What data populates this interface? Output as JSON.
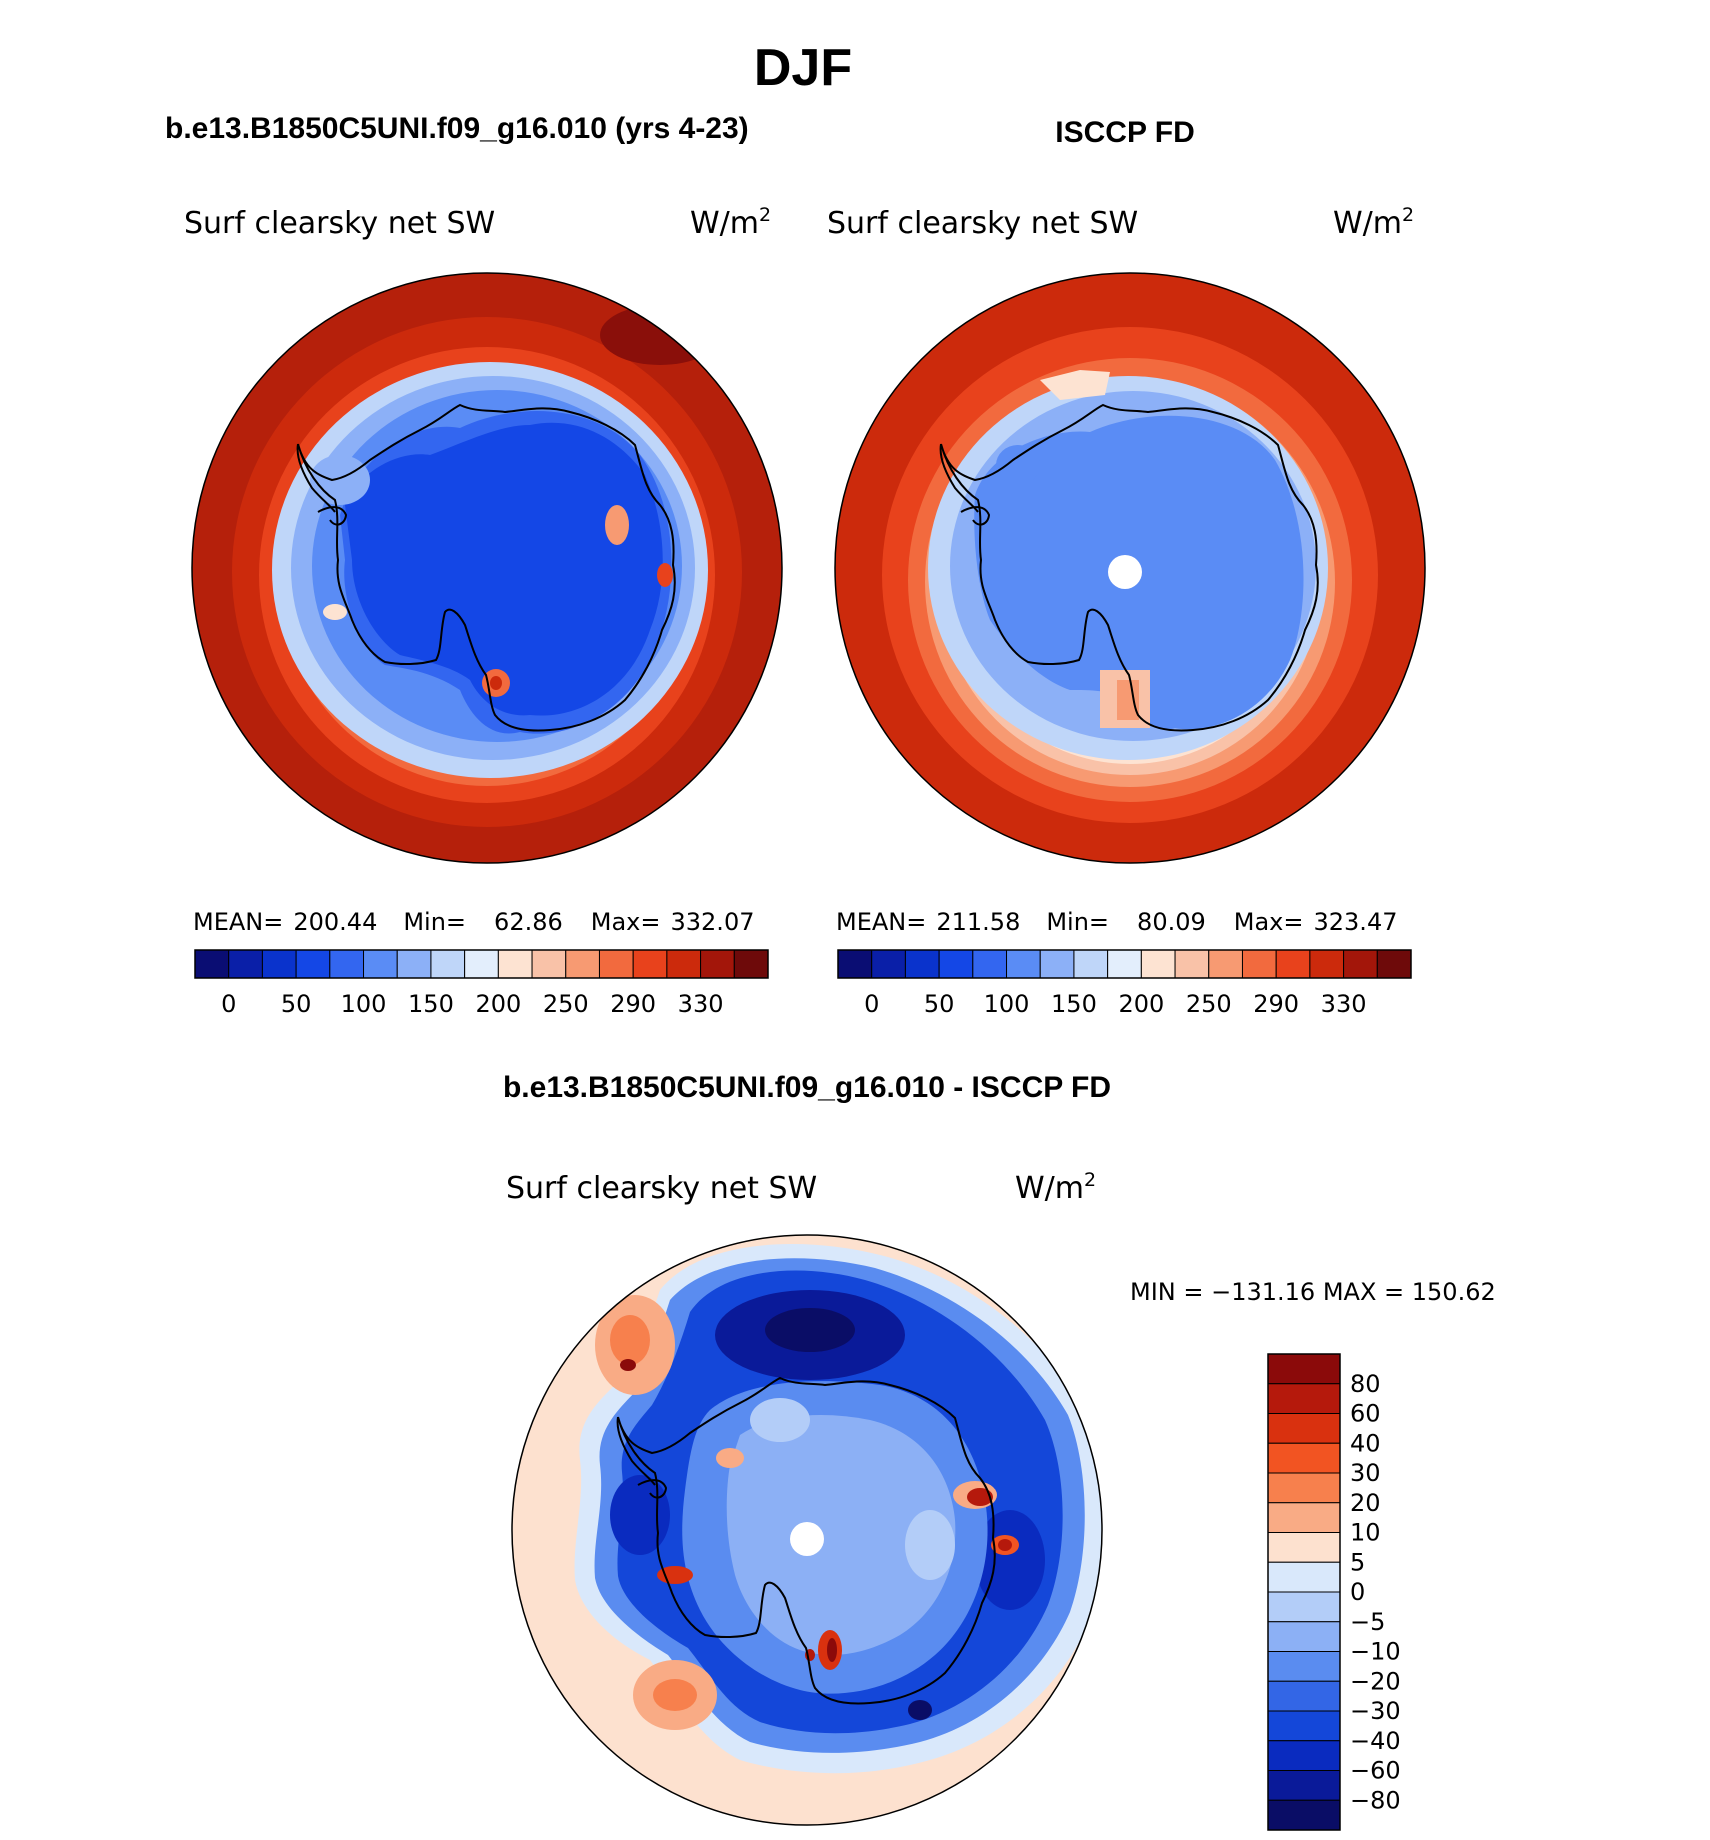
{
  "figure_title": "DJF",
  "chart_data": [
    {
      "type": "heatmap",
      "projection": "south-polar-stereographic",
      "panel_title": "b.e13.B1850C5UNI.f09_g16.010 (yrs 4-23)",
      "variable": "Surf clearsky net SW",
      "units_base": "W/m",
      "units_exp": "2",
      "stats": {
        "mean_label": "MEAN=",
        "mean": "200.44",
        "min_label": "Min=",
        "min": "62.86",
        "max_label": "Max=",
        "max": "332.07"
      },
      "colorbar": {
        "colors": [
          "#0a0d73",
          "#0a1fa8",
          "#0a33cc",
          "#1447e6",
          "#3366f0",
          "#5a8cf5",
          "#8cb0f7",
          "#bfd6f9",
          "#e3eefc",
          "#fde3d2",
          "#f9c2a8",
          "#f79a72",
          "#f26a3e",
          "#e8421c",
          "#cc2a0c",
          "#a3160a",
          "#6e0a0a"
        ],
        "tick_labels": [
          "0",
          "50",
          "100",
          "150",
          "200",
          "250",
          "290",
          "330"
        ],
        "tick_after_box": [
          1,
          3,
          5,
          7,
          9,
          11,
          13,
          15
        ]
      }
    },
    {
      "type": "heatmap",
      "projection": "south-polar-stereographic",
      "panel_title": "ISCCP FD",
      "variable": "Surf clearsky net SW",
      "units_base": "W/m",
      "units_exp": "2",
      "stats": {
        "mean_label": "MEAN=",
        "mean": "211.58",
        "min_label": "Min=",
        "min": "80.09",
        "max_label": "Max=",
        "max": "323.47"
      },
      "colorbar": {
        "colors": [
          "#0a0d73",
          "#0a1fa8",
          "#0a33cc",
          "#1447e6",
          "#3366f0",
          "#5a8cf5",
          "#8cb0f7",
          "#bfd6f9",
          "#e3eefc",
          "#fde3d2",
          "#f9c2a8",
          "#f79a72",
          "#f26a3e",
          "#e8421c",
          "#cc2a0c",
          "#a3160a",
          "#6e0a0a"
        ],
        "tick_labels": [
          "0",
          "50",
          "100",
          "150",
          "200",
          "250",
          "290",
          "330"
        ],
        "tick_after_box": [
          1,
          3,
          5,
          7,
          9,
          11,
          13,
          15
        ]
      }
    },
    {
      "type": "heatmap",
      "projection": "south-polar-stereographic",
      "panel_title": "b.e13.B1850C5UNI.f09_g16.010 - ISCCP FD",
      "variable": "Surf clearsky net SW",
      "units_base": "W/m",
      "units_exp": "2",
      "minmax_text": "MIN = −131.16 MAX = 150.62",
      "colorbar": {
        "colors_top_to_bottom": [
          "#8b0a0a",
          "#b5190c",
          "#d9310f",
          "#f25422",
          "#f7804d",
          "#f9ab85",
          "#fde1cf",
          "#d9e8fb",
          "#b3cdf8",
          "#8cb0f5",
          "#5a8cf0",
          "#3366e6",
          "#1447d9",
          "#0a2bbf",
          "#0a1a99",
          "#0a0d66"
        ],
        "labels": [
          "80",
          "60",
          "40",
          "30",
          "20",
          "10",
          "5",
          "0",
          "−5",
          "−10",
          "−20",
          "−30",
          "−40",
          "−60",
          "−80"
        ]
      }
    }
  ]
}
